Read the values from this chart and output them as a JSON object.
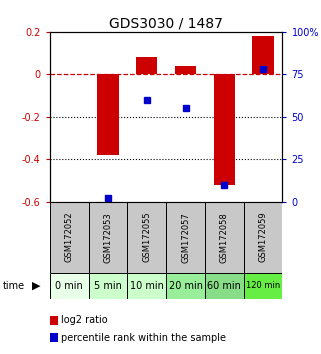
{
  "title": "GDS3030 / 1487",
  "samples": [
    "GSM172052",
    "GSM172053",
    "GSM172055",
    "GSM172057",
    "GSM172058",
    "GSM172059"
  ],
  "time_labels": [
    "0 min",
    "5 min",
    "10 min",
    "20 min",
    "60 min",
    "120 min"
  ],
  "log2_ratios": [
    0.0,
    -0.38,
    0.08,
    0.04,
    -0.52,
    0.18
  ],
  "percentile_ranks": [
    null,
    2,
    60,
    55,
    10,
    78
  ],
  "ylim_left": [
    -0.6,
    0.2
  ],
  "ylim_right": [
    0,
    100
  ],
  "bar_color": "#cc0000",
  "dot_color": "#0000cc",
  "zero_line_color": "#cc0000",
  "grid_color": "#000000",
  "label_bg_gray": "#c8c8c8",
  "time_green_colors": [
    "#e8ffe8",
    "#ccffcc",
    "#ccffcc",
    "#99ee99",
    "#88dd88",
    "#66ee44"
  ],
  "title_fontsize": 10,
  "tick_fontsize": 7,
  "sample_fontsize": 6,
  "time_fontsize": 7,
  "legend_fontsize": 7,
  "bar_width": 0.55
}
